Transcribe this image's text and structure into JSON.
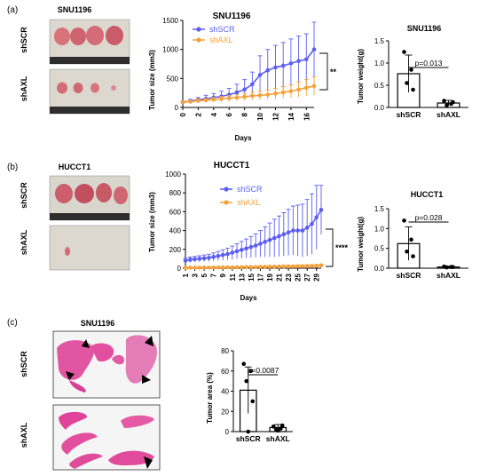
{
  "panels": {
    "a": {
      "label": "(a)",
      "photo": {
        "title": "SNU1196",
        "rows": [
          "shSCR",
          "shAXL"
        ]
      },
      "growth": {
        "title": "SNU1196",
        "ylabel": "Tumor size (mm3)",
        "xlabel": "Days",
        "sig": "**",
        "legend": [
          "shSCR",
          "shAXL"
        ],
        "yticks": [
          "0",
          "500",
          "1000",
          "1500"
        ],
        "xticks": [
          "0",
          "2",
          "4",
          "6",
          "8",
          "10",
          "12",
          "14",
          "16"
        ]
      },
      "weight": {
        "title": "SNU1196",
        "ylabel": "Tumor weight(g)",
        "pvalue": "p=0.013",
        "yticks": [
          "0.0",
          "0.5",
          "1.0",
          "1.5"
        ],
        "categories": [
          "shSCR",
          "shAXL"
        ]
      }
    },
    "b": {
      "label": "(b)",
      "photo": {
        "title": "HUCCT1",
        "rows": [
          "shSCR",
          "shAXL"
        ]
      },
      "growth": {
        "title": "HUCCT1",
        "ylabel": "Tumor size (mm3)",
        "xlabel": "Days",
        "sig": "****",
        "legend": [
          "shSCR",
          "shAXL"
        ],
        "yticks": [
          "0",
          "200",
          "400",
          "600",
          "800",
          "1000"
        ],
        "xticks": [
          "1",
          "3",
          "5",
          "7",
          "9",
          "11",
          "13",
          "15",
          "17",
          "19",
          "21",
          "23",
          "25",
          "27",
          "29"
        ]
      },
      "weight": {
        "title": "HUCCT1",
        "ylabel": "Tumor weight(g)",
        "pvalue": "p=0.028",
        "yticks": [
          "0.0",
          "0.5",
          "1.0",
          "1.5"
        ],
        "categories": [
          "shSCR",
          "shAXL"
        ]
      }
    },
    "c": {
      "label": "(c)",
      "photo": {
        "title": "SNU1196",
        "rows": [
          "shSCR",
          "shAXL"
        ]
      },
      "area": {
        "ylabel": "Tumor area (%)",
        "pvalue": "p=0.0087",
        "yticks": [
          "0",
          "20",
          "40",
          "60",
          "80"
        ],
        "categories": [
          "shSCR",
          "shAXL"
        ]
      }
    }
  },
  "colors": {
    "shSCR": "#5b5ef0",
    "shAXL": "#f5a13a",
    "tissue": "#e0449a"
  },
  "chart_data": [
    {
      "type": "line",
      "title": "SNU1196",
      "xlabel": "Days",
      "ylabel": "Tumor size (mm3)",
      "xlim": [
        0,
        17
      ],
      "ylim": [
        0,
        1500
      ],
      "x": [
        0,
        1,
        2,
        3,
        4,
        5,
        6,
        7,
        8,
        9,
        10,
        11,
        12,
        13,
        14,
        15,
        16,
        17
      ],
      "series": [
        {
          "name": "shSCR",
          "values": [
            90,
            110,
            130,
            150,
            170,
            190,
            220,
            260,
            310,
            400,
            560,
            640,
            690,
            720,
            760,
            800,
            830,
            1000
          ],
          "errors": [
            20,
            30,
            40,
            60,
            70,
            90,
            110,
            140,
            170,
            210,
            330,
            360,
            380,
            400,
            420,
            430,
            440,
            470
          ]
        },
        {
          "name": "shAXL",
          "values": [
            90,
            100,
            115,
            125,
            135,
            150,
            160,
            170,
            185,
            200,
            210,
            220,
            240,
            260,
            280,
            310,
            340,
            370
          ],
          "errors": [
            15,
            20,
            25,
            30,
            35,
            40,
            45,
            50,
            60,
            70,
            75,
            80,
            90,
            100,
            110,
            130,
            140,
            160
          ]
        }
      ]
    },
    {
      "type": "bar",
      "title": "SNU1196",
      "ylabel": "Tumor weight(g)",
      "ylim": [
        0,
        1.5
      ],
      "categories": [
        "shSCR",
        "shAXL"
      ],
      "values": [
        0.76,
        0.1
      ],
      "errors": [
        0.42,
        0.06
      ],
      "points": [
        [
          1.25,
          0.85,
          0.55,
          0.4
        ],
        [
          0.15,
          0.08,
          0.05,
          0.12
        ]
      ]
    },
    {
      "type": "line",
      "title": "HUCCT1",
      "xlabel": "Days",
      "ylabel": "Tumor size (mm3)",
      "xlim": [
        1,
        30
      ],
      "ylim": [
        0,
        1000
      ],
      "x": [
        1,
        2,
        3,
        4,
        5,
        6,
        7,
        8,
        9,
        10,
        11,
        12,
        13,
        14,
        15,
        16,
        17,
        18,
        19,
        20,
        21,
        22,
        23,
        24,
        25,
        26,
        27,
        28,
        29,
        30
      ],
      "series": [
        {
          "name": "shSCR",
          "values": [
            80,
            90,
            95,
            100,
            105,
            110,
            120,
            130,
            140,
            150,
            165,
            180,
            195,
            210,
            225,
            240,
            260,
            280,
            300,
            320,
            340,
            360,
            380,
            400,
            400,
            400,
            430,
            470,
            540,
            620
          ],
          "errors": [
            25,
            28,
            30,
            32,
            35,
            38,
            42,
            48,
            55,
            62,
            70,
            80,
            90,
            100,
            112,
            125,
            140,
            160,
            180,
            200,
            215,
            230,
            245,
            260,
            270,
            280,
            300,
            320,
            340,
            260
          ]
        },
        {
          "name": "shAXL",
          "values": [
            5,
            5,
            6,
            6,
            7,
            7,
            8,
            8,
            9,
            9,
            10,
            10,
            11,
            12,
            12,
            13,
            14,
            15,
            16,
            16,
            17,
            18,
            19,
            20,
            21,
            22,
            23,
            24,
            25,
            30
          ],
          "errors": [
            3,
            3,
            3,
            3,
            4,
            4,
            4,
            4,
            5,
            5,
            5,
            5,
            6,
            6,
            6,
            7,
            7,
            7,
            8,
            8,
            8,
            9,
            9,
            10,
            10,
            10,
            11,
            11,
            12,
            14
          ]
        }
      ]
    },
    {
      "type": "bar",
      "title": "HUCCT1",
      "ylabel": "Tumor weight(g)",
      "ylim": [
        0,
        1.5
      ],
      "categories": [
        "shSCR",
        "shAXL"
      ],
      "values": [
        0.62,
        0.03
      ],
      "errors": [
        0.42,
        0.02
      ],
      "points": [
        [
          1.2,
          0.72,
          0.42,
          0.3
        ],
        [
          0.04,
          0.03,
          0.02,
          0.03
        ]
      ]
    },
    {
      "type": "bar",
      "title": "",
      "ylabel": "Tumor area (%)",
      "ylim": [
        0,
        80
      ],
      "categories": [
        "shSCR",
        "shAXL"
      ],
      "values": [
        41,
        4
      ],
      "errors": [
        23,
        3
      ],
      "points": [
        [
          67,
          60,
          50,
          30,
          0
        ],
        [
          5,
          3,
          2,
          6,
          1
        ]
      ]
    }
  ]
}
